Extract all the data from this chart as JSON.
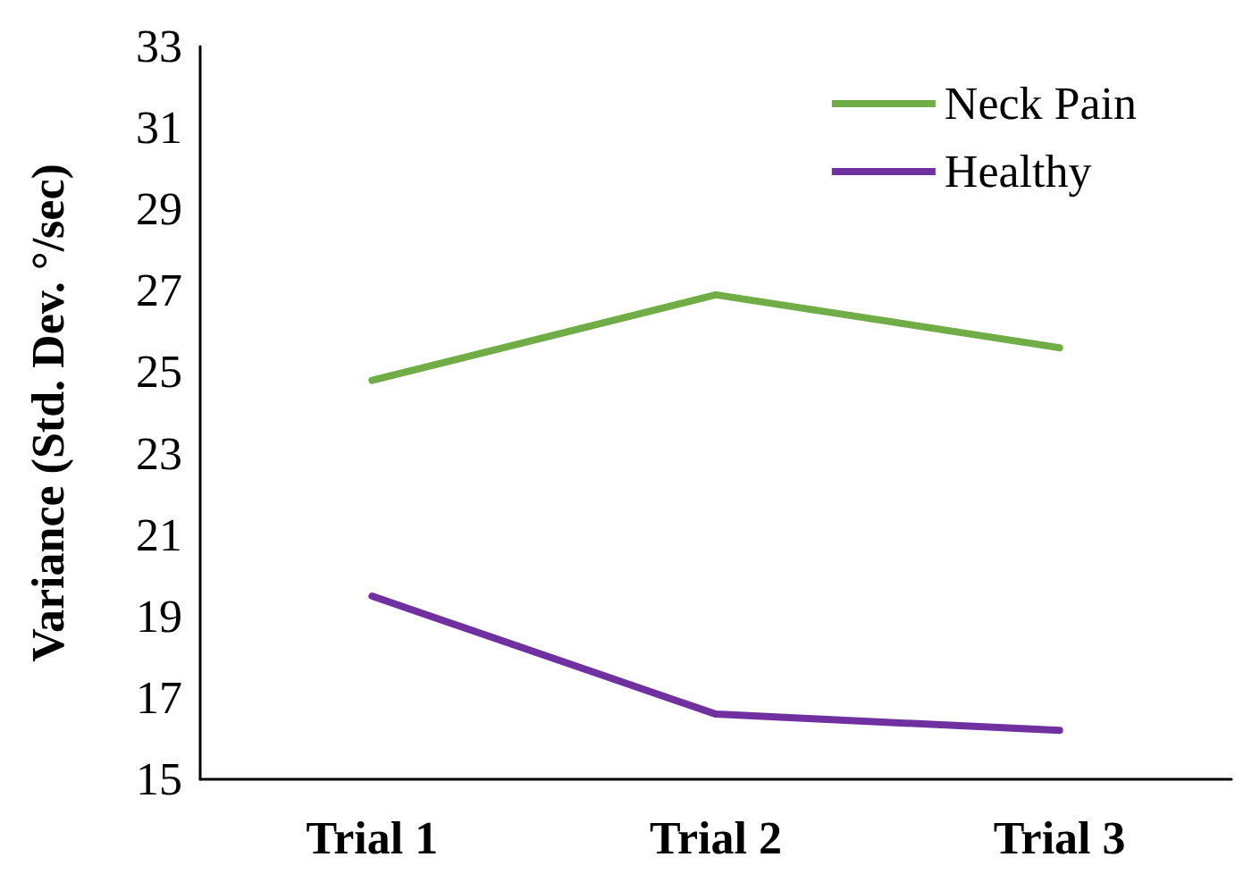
{
  "chart_data": {
    "type": "line",
    "ylabel": "Variance (Std. Dev. °/sec)",
    "categories": [
      "Trial 1",
      "Trial 2",
      "Trial 3"
    ],
    "series": [
      {
        "name": "Neck Pain",
        "color": "#70ad47",
        "values": [
          24.8,
          26.9,
          25.6
        ]
      },
      {
        "name": "Healthy",
        "color": "#7030a0",
        "values": [
          19.5,
          16.6,
          16.2
        ]
      }
    ],
    "ylim": [
      15,
      33
    ],
    "yticks": [
      15,
      17,
      19,
      21,
      23,
      25,
      27,
      29,
      31,
      33
    ],
    "grid": false,
    "legend": "top right",
    "marker": "none",
    "line_style": "solid"
  }
}
